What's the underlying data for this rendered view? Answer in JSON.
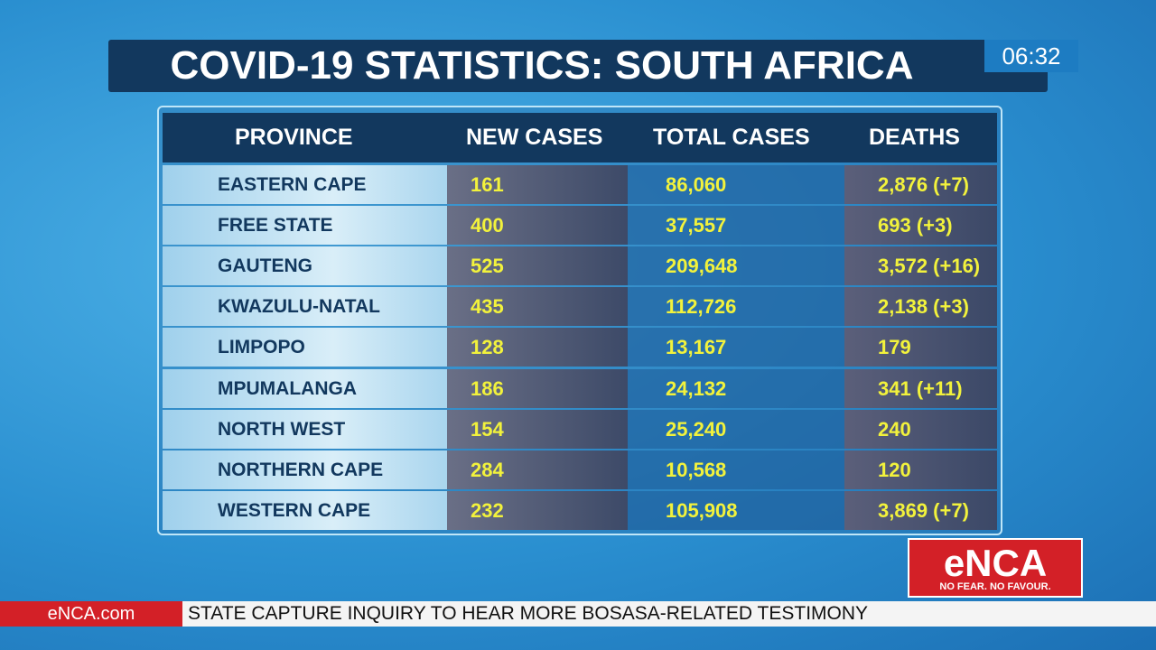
{
  "header": {
    "title": "COVID-19 STATISTICS: SOUTH AFRICA",
    "time": "06:32"
  },
  "table": {
    "columns": [
      "PROVINCE",
      "NEW CASES",
      "TOTAL CASES",
      "DEATHS"
    ],
    "rows": [
      [
        "EASTERN CAPE",
        "161",
        "86,060",
        "2,876 (+7)"
      ],
      [
        "FREE STATE",
        "400",
        "37,557",
        "693 (+3)"
      ],
      [
        "GAUTENG",
        "525",
        "209,648",
        "3,572 (+16)"
      ],
      [
        "KWAZULU-NATAL",
        "435",
        "112,726",
        "2,138 (+3)"
      ],
      [
        "LIMPOPO",
        "128",
        "13,167",
        "179"
      ],
      [
        "MPUMALANGA",
        "186",
        "24,132",
        "341 (+11)"
      ],
      [
        "NORTH WEST",
        "154",
        "25,240",
        "240"
      ],
      [
        "NORTHERN CAPE",
        "284",
        "10,568",
        "120"
      ],
      [
        "WESTERN CAPE",
        "232",
        "105,908",
        "3,869 (+7)"
      ]
    ]
  },
  "logo": {
    "name": "eNCA",
    "slogan": "NO FEAR. NO FAVOUR."
  },
  "ticker": {
    "source": "eNCA.com",
    "headline": "STATE CAPTURE INQUIRY TO HEAR MORE BOSASA-RELATED TESTIMONY"
  }
}
